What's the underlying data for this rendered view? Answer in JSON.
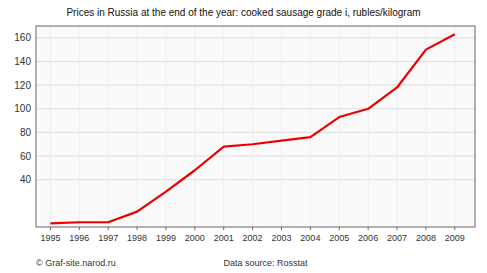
{
  "chart_data": {
    "type": "line",
    "title": "Prices in Russia at the end of the year: cooked sausage grade i, rubles/kilogram",
    "x": [
      1995,
      1996,
      1997,
      1998,
      1999,
      2000,
      2001,
      2002,
      2003,
      2004,
      2005,
      2006,
      2007,
      2008,
      2009
    ],
    "values": [
      3,
      4,
      4,
      13,
      30,
      48,
      68,
      70,
      73,
      76,
      93,
      100,
      118,
      150,
      163
    ],
    "color": "#ee0000",
    "xlim": [
      1994.5,
      2009.7
    ],
    "xticks": [
      1995,
      1996,
      1997,
      1998,
      1999,
      2000,
      2001,
      2002,
      2003,
      2004,
      2005,
      2006,
      2007,
      2008,
      2009
    ],
    "ylim": [
      0,
      170
    ],
    "yticks": [
      40,
      60,
      80,
      100,
      120,
      140,
      160
    ],
    "grid": true,
    "annotations": [
      "© Graf-site.narod.ru",
      "Data source: Rosstat"
    ]
  }
}
